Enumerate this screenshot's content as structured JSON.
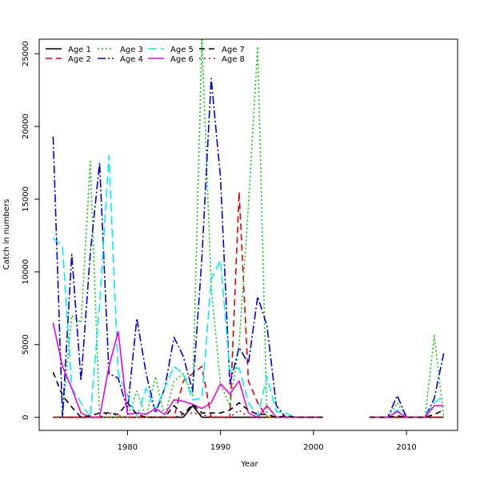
{
  "chart_data": {
    "type": "line",
    "xlabel": "Year",
    "ylabel": "Catch in numbers",
    "xlim": [
      1970.5,
      2015.5
    ],
    "ylim": [
      -900,
      26000
    ],
    "x_ticks": [
      1980,
      1990,
      2000,
      2010
    ],
    "y_ticks": [
      0,
      5000,
      10000,
      15000,
      20000,
      25000
    ],
    "grid": false,
    "legend_position": "top-left",
    "x": [
      1972,
      1973,
      1974,
      1975,
      1976,
      1977,
      1978,
      1979,
      1980,
      1981,
      1982,
      1983,
      1984,
      1985,
      1986,
      1987,
      1988,
      1989,
      1990,
      1991,
      1992,
      1993,
      1994,
      1995,
      1996,
      1997,
      1998,
      1999,
      2000,
      2001,
      2002,
      2003,
      2004,
      2005,
      2006,
      2007,
      2008,
      2009,
      2010,
      2011,
      2012,
      2013,
      2014
    ],
    "series": [
      {
        "name": "Age 1",
        "color": "#000000",
        "dash": "",
        "values": [
          0,
          0,
          0,
          0,
          0,
          0,
          0,
          0,
          0,
          0,
          0,
          0,
          0,
          0,
          0,
          800,
          0,
          0,
          0,
          0,
          0,
          0,
          0,
          0,
          0,
          0,
          0,
          0,
          0,
          0,
          null,
          null,
          null,
          null,
          0,
          0,
          0,
          0,
          0,
          0,
          0,
          0,
          0
        ]
      },
      {
        "name": "Age 2",
        "color": "#DF0000",
        "dash": "8,5",
        "values": [
          0,
          0,
          0,
          0,
          0,
          0,
          0,
          0,
          0,
          0,
          0,
          0,
          0,
          0,
          2500,
          3000,
          3500,
          0,
          0,
          0,
          15500,
          2500,
          1000,
          0,
          0,
          0,
          0,
          0,
          0,
          0,
          null,
          null,
          null,
          null,
          0,
          0,
          0,
          0,
          0,
          0,
          0,
          0,
          0
        ]
      },
      {
        "name": "Age 3",
        "color": "#00CC00",
        "dash": "2,3",
        "values": [
          0,
          0,
          7000,
          6500,
          17600,
          0,
          0,
          0,
          0,
          1800,
          0,
          2800,
          0,
          2500,
          3000,
          1500,
          26000,
          9000,
          2300,
          800,
          5000,
          14500,
          25500,
          0,
          0,
          0,
          0,
          0,
          0,
          0,
          null,
          null,
          null,
          null,
          0,
          0,
          0,
          1000,
          0,
          0,
          0,
          5600,
          0
        ]
      },
      {
        "name": "Age 4",
        "color": "#0000DD",
        "dash": "10,3,2,3",
        "values": [
          19300,
          0,
          11200,
          2500,
          11300,
          17500,
          3000,
          2700,
          500,
          6800,
          3000,
          300,
          2000,
          5500,
          4200,
          1800,
          11000,
          23300,
          16500,
          2300,
          4800,
          3700,
          8300,
          6300,
          800,
          0,
          0,
          0,
          0,
          0,
          null,
          null,
          null,
          null,
          0,
          0,
          0,
          1500,
          0,
          0,
          0,
          1300,
          4400
        ]
      },
      {
        "name": "Age 5",
        "color": "#00F0F0",
        "dash": "11,5",
        "values": [
          12300,
          11800,
          2000,
          1000,
          0,
          7700,
          18000,
          3000,
          1500,
          0,
          2000,
          500,
          2000,
          3500,
          3000,
          1200,
          1300,
          9500,
          10800,
          3200,
          3400,
          1000,
          100,
          2800,
          400,
          300,
          0,
          0,
          0,
          0,
          null,
          null,
          null,
          null,
          0,
          0,
          0,
          500,
          0,
          0,
          0,
          1000,
          1500
        ]
      },
      {
        "name": "Age 6",
        "color": "#EE00EE",
        "dash": "",
        "values": [
          6500,
          3500,
          2000,
          300,
          0,
          0,
          3500,
          5900,
          200,
          300,
          200,
          600,
          200,
          1200,
          1100,
          900,
          600,
          1000,
          2300,
          1600,
          2500,
          300,
          0,
          800,
          0,
          0,
          0,
          0,
          0,
          0,
          null,
          null,
          null,
          null,
          0,
          0,
          0,
          400,
          0,
          0,
          0,
          800,
          800
        ]
      },
      {
        "name": "Age 7",
        "color": "#000000",
        "dash": "7,5",
        "values": [
          3100,
          1500,
          700,
          0,
          100,
          300,
          300,
          200,
          1000,
          200,
          0,
          0,
          0,
          800,
          200,
          900,
          300,
          300,
          300,
          500,
          1000,
          500,
          200,
          200,
          0,
          100,
          0,
          0,
          0,
          0,
          null,
          null,
          null,
          null,
          0,
          0,
          0,
          100,
          0,
          0,
          0,
          200,
          500
        ]
      },
      {
        "name": "Age 8",
        "color": "#C80000",
        "dash": "2,4",
        "values": [
          0,
          0,
          0,
          0,
          0,
          0,
          300,
          100,
          0,
          0,
          0,
          0,
          0,
          0,
          200,
          300,
          200,
          0,
          0,
          0,
          500,
          0,
          0,
          0,
          0,
          0,
          0,
          0,
          0,
          0,
          null,
          null,
          null,
          null,
          0,
          0,
          0,
          0,
          0,
          0,
          0,
          0,
          0
        ]
      }
    ]
  }
}
